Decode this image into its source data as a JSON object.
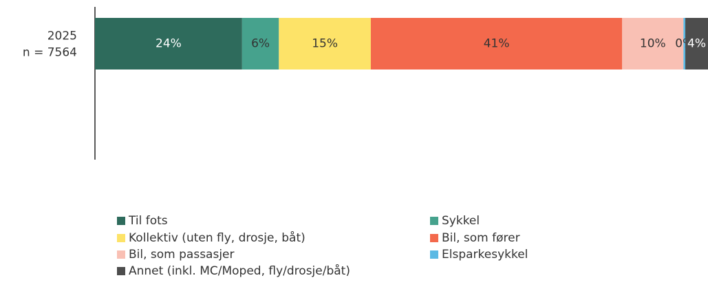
{
  "chart_data": {
    "type": "stacked-bar-horizontal",
    "categories": [
      [
        "2025",
        "n = 7564"
      ]
    ],
    "series": [
      {
        "name": "Til fots",
        "color": "#2e6b5c",
        "values": [
          24
        ],
        "value_labels": [
          "24%"
        ]
      },
      {
        "name": "Sykkel",
        "color": "#46a28d",
        "values": [
          6
        ],
        "value_labels": [
          "6%"
        ]
      },
      {
        "name": "Kollektiv (uten fly, drosje, båt)",
        "color": "#fde368",
        "values": [
          15
        ],
        "value_labels": [
          "15%"
        ]
      },
      {
        "name": "Bil, som fører",
        "color": "#f3694c",
        "values": [
          41
        ],
        "value_labels": [
          "41%"
        ]
      },
      {
        "name": "Bil, som passasjer",
        "color": "#f9c0b4",
        "values": [
          10
        ],
        "value_labels": [
          "10%"
        ]
      },
      {
        "name": "Elsparkesykkel",
        "color": "#5bb9e4",
        "values": [
          0.3
        ],
        "value_labels": [
          "0%"
        ]
      },
      {
        "name": "Annet (inkl. MC/Moped, fly/drosje/båt)",
        "color": "#4d4d4d",
        "values": [
          3.7
        ],
        "value_labels": [
          "4%"
        ]
      }
    ],
    "xlim": [
      0,
      100
    ]
  }
}
